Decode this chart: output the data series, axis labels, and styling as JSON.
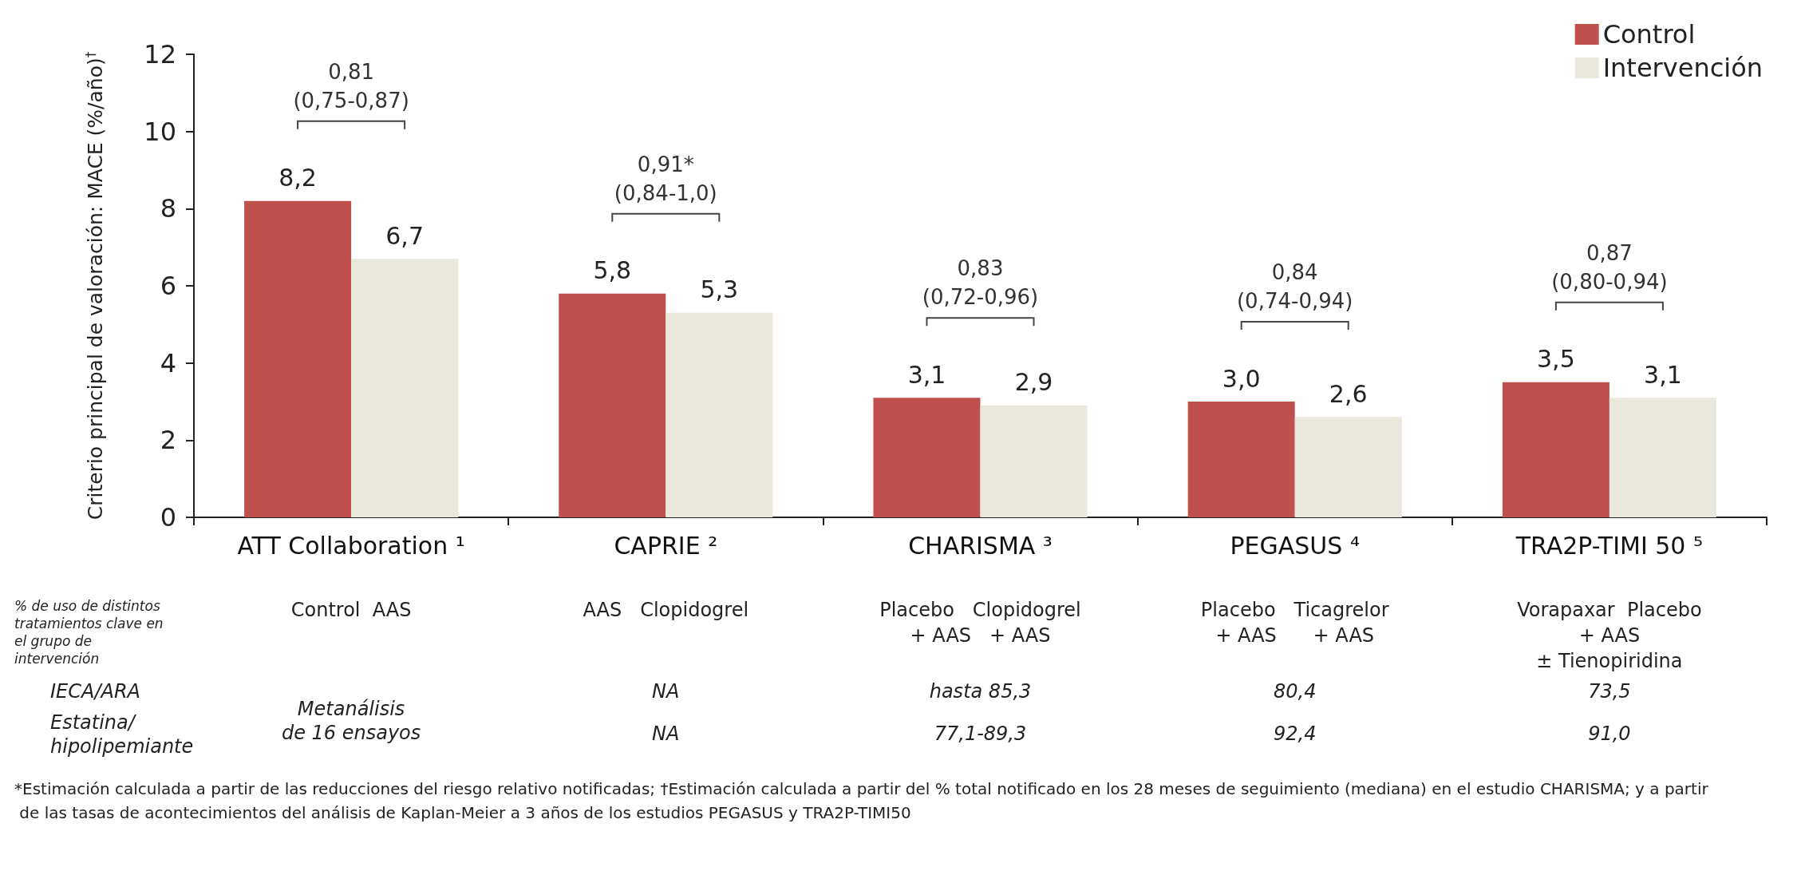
{
  "chart_data": {
    "type": "bar",
    "ylabel": "Criterio principal de valoración: MACE (%/año)$^{†}$",
    "categories": [
      "ATT Collaboration ¹",
      "CAPRIE ²",
      "CHARISMA ³",
      "PEGASUS ⁴",
      "TRA2P-TIMI 50 ⁵"
    ],
    "series": [
      {
        "name": "Control",
        "color": "#c0504d",
        "values": [
          8.2,
          5.8,
          3.1,
          3.0,
          3.5
        ],
        "value_labels": [
          "8,2",
          "5,8",
          "3,1",
          "3,0",
          "3,5"
        ]
      },
      {
        "name": "Intervención",
        "color": "#eae8dd",
        "values": [
          6.7,
          5.3,
          2.9,
          2.6,
          3.1
        ],
        "value_labels": [
          "6,7",
          "5,3",
          "2,9",
          "2,6",
          "3,1"
        ]
      }
    ],
    "ylim": [
      0,
      12
    ],
    "yticks": [
      0,
      2,
      4,
      6,
      8,
      10,
      12
    ],
    "grid": false,
    "legend": "top right",
    "annotations": [
      "0,81\n(0,75-0,87)",
      "0,91*\n(0,84-1,0)",
      "0,83\n(0,72-0,96)",
      "0,84\n(0,74-0,94)",
      "0,87\n(0,80-0,94)",
      "% de uso de distintos\ntratamientos clave en\nel grupo de\nintervención",
      "Control  AAS",
      "AAS   Clopidogrel",
      "Placebo   Clopidogrel\n+ AAS   + AAS",
      "Placebo   Ticagrelor\n+ AAS      + AAS",
      "Vorapaxar  Placebo\n+ AAS\n± Tienopiridina",
      "IECA/ARA",
      "Estatina/\nhipolipemiante",
      "Metanálisis\nde 16 ensayos",
      "NA",
      "hasta 85,3",
      "80,4",
      "73,5",
      "NA",
      "77,1-89,3",
      "92,4",
      "91,0",
      "*Estimación calculada a partir de las reducciones del riesgo relativo notificadas; †Estimación calculada a partir del % total notificado en los 28 meses de seguimiento (mediana) en el estudio CHARISMA; y a partir de las tasas de acontecimientos del análisis de Kaplan-Meier a 3 años de los estudios PEGASUS y TRA2P-TIMI50"
    ]
  }
}
